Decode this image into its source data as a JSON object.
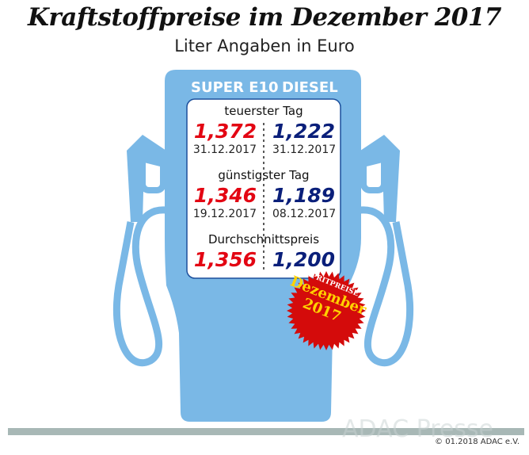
{
  "title": "Kraftstoffpreise im Dezember 2017",
  "subtitle": "Liter Angaben in Euro",
  "colors": {
    "pump": "#7ab8e6",
    "super": "#e30613",
    "diesel": "#0a1f7a",
    "badge": "#d40b0b",
    "badge_text": "#ffd200"
  },
  "columns": {
    "super": "SUPER E10",
    "diesel": "DIESEL"
  },
  "rows": [
    {
      "label": "teuerster Tag",
      "super": "1,372",
      "super_date": "31.12.2017",
      "diesel": "1,222",
      "diesel_date": "31.12.2017"
    },
    {
      "label": "günstigster Tag",
      "super": "1,346",
      "super_date": "19.12.2017",
      "diesel": "1,189",
      "diesel_date": "08.12.2017"
    },
    {
      "label": "Durchschnittspreis",
      "super": "1,356",
      "diesel": "1,200"
    }
  ],
  "badge": {
    "top": "SPRITPREISE",
    "month": "Dezember",
    "year": "2017"
  },
  "watermark": "ADAC Presse",
  "copyright": "© 01.2018  ADAC e.V."
}
